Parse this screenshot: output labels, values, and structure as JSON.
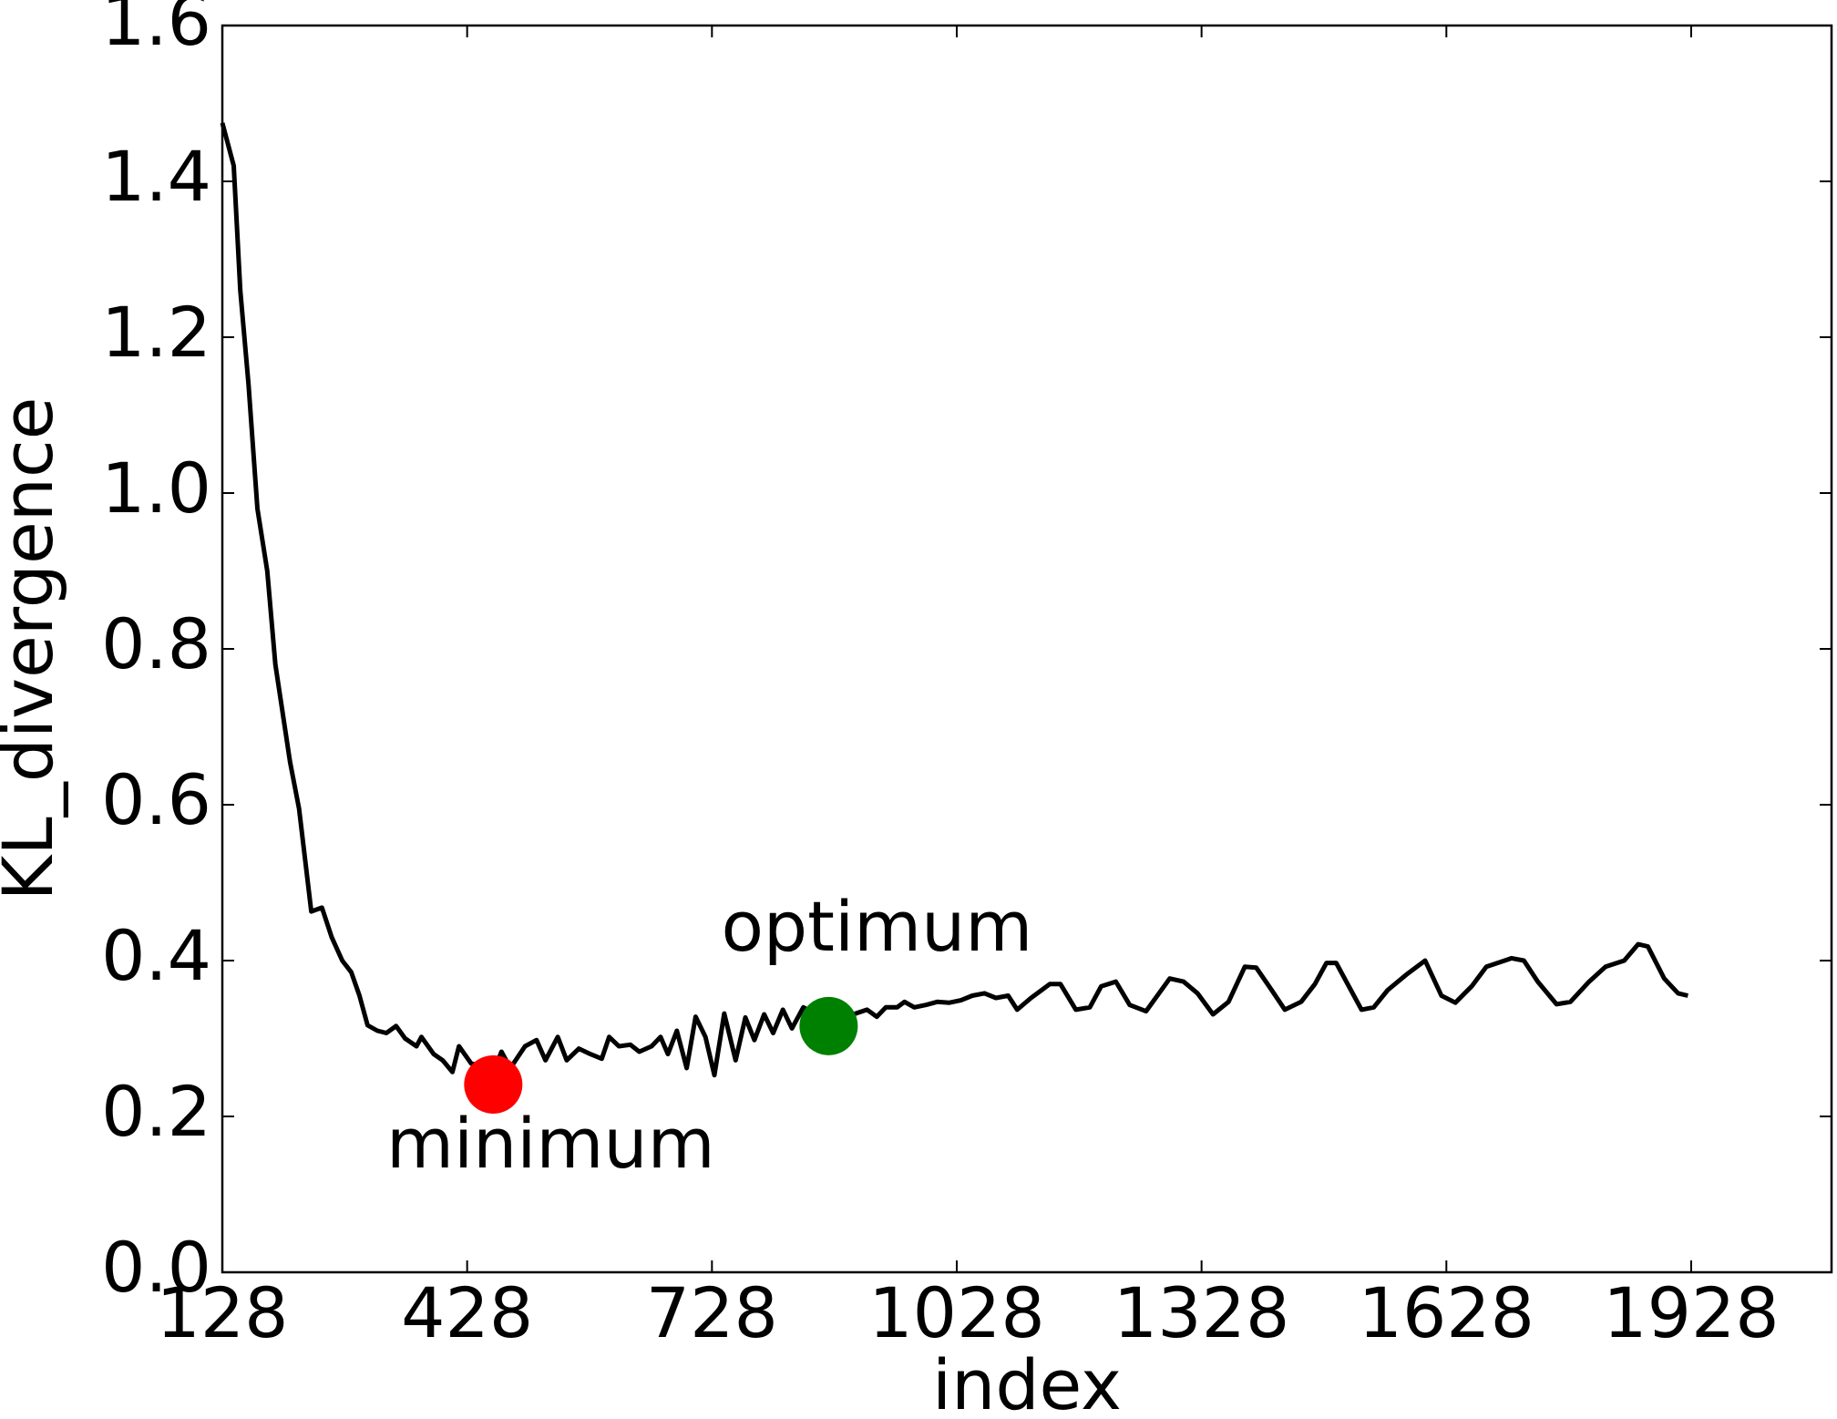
{
  "chart_data": {
    "type": "line",
    "xlabel": "index",
    "ylabel": "KL_divergence",
    "color": "#000000",
    "x": [
      128,
      142,
      150,
      160,
      171,
      183,
      193,
      211,
      222,
      237,
      250,
      262,
      275,
      286,
      296,
      306,
      318,
      329,
      341,
      352,
      366,
      372,
      387,
      398,
      410,
      418,
      433,
      444,
      458,
      470,
      481,
      499,
      513,
      524,
      539,
      550,
      565,
      579,
      593,
      602,
      614,
      628,
      639,
      654,
      665,
      674,
      685,
      697,
      708,
      720,
      731,
      743,
      757,
      769,
      780,
      792,
      803,
      815,
      826,
      840,
      855,
      869,
      884,
      901,
      918,
      930,
      941,
      955,
      964,
      976,
      990,
      1004,
      1019,
      1033,
      1047,
      1062,
      1076,
      1091,
      1102,
      1119,
      1142,
      1155,
      1174,
      1191,
      1205,
      1223,
      1240,
      1260,
      1289,
      1306,
      1323,
      1342,
      1361,
      1381,
      1395,
      1412,
      1430,
      1450,
      1467,
      1481,
      1493,
      1507,
      1524,
      1539,
      1556,
      1579,
      1602,
      1622,
      1639,
      1659,
      1677,
      1708,
      1723,
      1740,
      1763,
      1780,
      1803,
      1823,
      1846,
      1863,
      1875,
      1895,
      1912,
      1924
    ],
    "values": [
      1.475,
      1.42,
      1.26,
      1.14,
      0.98,
      0.9,
      0.78,
      0.655,
      0.595,
      0.463,
      0.468,
      0.43,
      0.4,
      0.385,
      0.355,
      0.317,
      0.31,
      0.307,
      0.316,
      0.3,
      0.29,
      0.302,
      0.28,
      0.272,
      0.257,
      0.29,
      0.268,
      0.265,
      0.25,
      0.283,
      0.262,
      0.29,
      0.298,
      0.272,
      0.302,
      0.272,
      0.287,
      0.28,
      0.274,
      0.302,
      0.29,
      0.292,
      0.283,
      0.29,
      0.302,
      0.28,
      0.31,
      0.262,
      0.328,
      0.302,
      0.253,
      0.332,
      0.272,
      0.327,
      0.298,
      0.331,
      0.307,
      0.337,
      0.313,
      0.34,
      0.331,
      0.316,
      0.331,
      0.331,
      0.337,
      0.328,
      0.34,
      0.34,
      0.347,
      0.34,
      0.343,
      0.347,
      0.346,
      0.349,
      0.355,
      0.358,
      0.352,
      0.355,
      0.337,
      0.352,
      0.37,
      0.37,
      0.337,
      0.34,
      0.367,
      0.373,
      0.343,
      0.335,
      0.377,
      0.373,
      0.358,
      0.331,
      0.347,
      0.392,
      0.391,
      0.365,
      0.337,
      0.347,
      0.37,
      0.397,
      0.397,
      0.37,
      0.337,
      0.34,
      0.362,
      0.382,
      0.4,
      0.355,
      0.346,
      0.367,
      0.392,
      0.403,
      0.4,
      0.373,
      0.344,
      0.347,
      0.373,
      0.392,
      0.4,
      0.421,
      0.418,
      0.377,
      0.358,
      0.355
    ],
    "points": [
      {
        "label": "minimum",
        "x": 460,
        "y": 0.241,
        "color": "#ff0000"
      },
      {
        "label": "optimum",
        "x": 871,
        "y": 0.316,
        "color": "#008000"
      }
    ],
    "xlim": [
      128,
      2100
    ],
    "xticks": [
      128,
      428,
      728,
      1028,
      1328,
      1628,
      1928
    ],
    "ylim": [
      0,
      1.6
    ],
    "yticks": [
      {
        "value": 0,
        "label": "0.0"
      },
      0.2,
      0.4,
      0.6,
      0.8,
      {
        "value": 1,
        "label": "1.0"
      },
      1.2,
      1.4,
      1.6
    ],
    "grid": false
  }
}
